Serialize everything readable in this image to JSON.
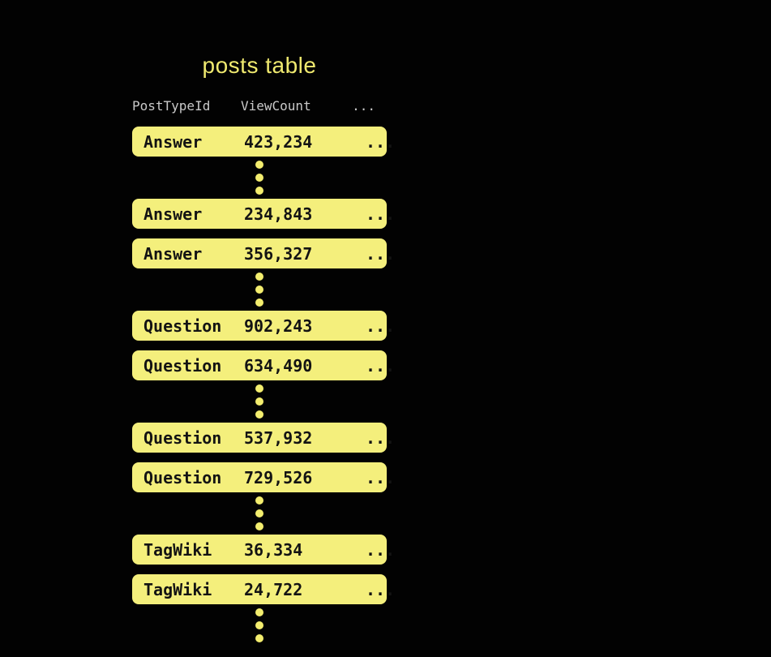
{
  "theme": {
    "bg": "#020202",
    "title": "#EFE96F",
    "header-text": "#C9C9C9",
    "row-fill": "#F4EF7C",
    "row-text": "#131313",
    "dot": "#F3ED6E"
  },
  "table": {
    "title": "posts table",
    "header": {
      "post_type_id": "PostTypeId",
      "view_count": "ViewCount",
      "more": "..."
    },
    "rows": [
      {
        "type": "Answer",
        "views": "423,234",
        "more": "..."
      },
      {
        "type": "Answer",
        "views": "234,843",
        "more": "..."
      },
      {
        "type": "Answer",
        "views": "356,327",
        "more": "..."
      },
      {
        "type": "Question",
        "views": "902,243",
        "more": "..."
      },
      {
        "type": "Question",
        "views": "634,490",
        "more": "..."
      },
      {
        "type": "Question",
        "views": "537,932",
        "more": "..."
      },
      {
        "type": "Question",
        "views": "729,526",
        "more": "..."
      },
      {
        "type": "TagWiki",
        "views": "36,334",
        "more": "..."
      },
      {
        "type": "TagWiki",
        "views": "24,722",
        "more": "..."
      }
    ]
  }
}
